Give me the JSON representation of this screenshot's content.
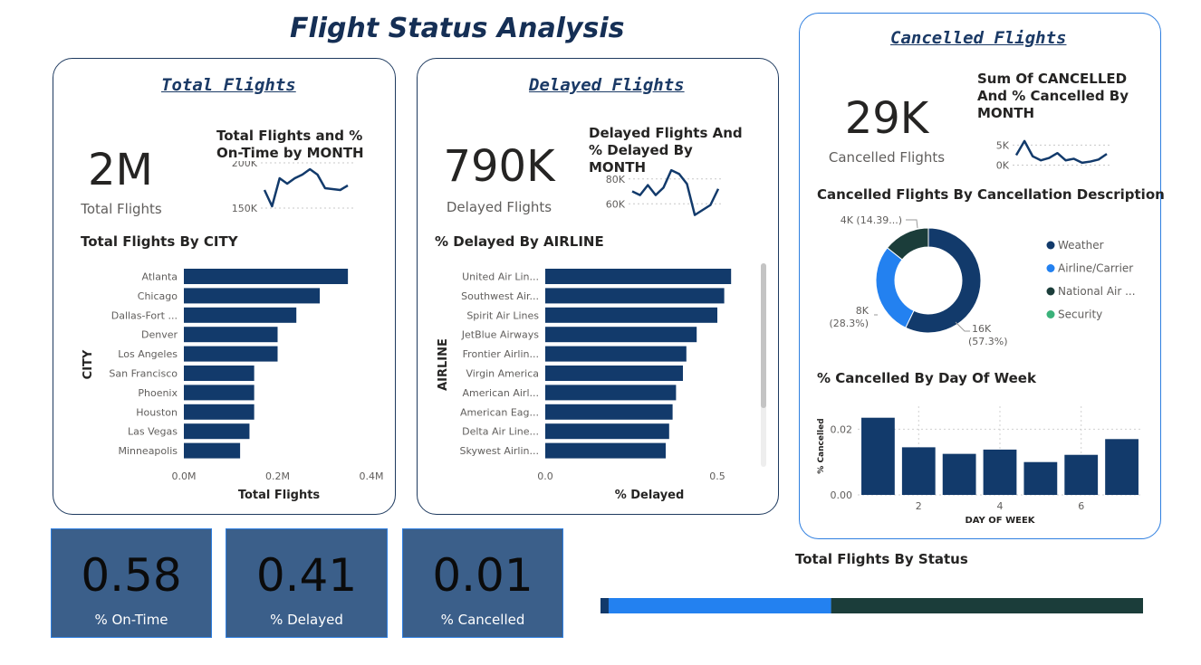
{
  "page_title": "Flight Status Analysis",
  "colors": {
    "navy": "#123a6b",
    "bright_blue": "#2381f0",
    "dark_green": "#1b3d3a",
    "green": "#3bb27a"
  },
  "total_panel": {
    "header": "Total Flights",
    "kpi_value": "2M",
    "kpi_label": "Total Flights",
    "spark_title": "Total Flights and % On-Time by MONTH",
    "bar_title": "Total Flights By CITY"
  },
  "delayed_panel": {
    "header": "Delayed Flights",
    "kpi_value": "790K",
    "kpi_label": "Delayed Flights",
    "spark_title": "Delayed Flights And % Delayed By MONTH",
    "bar_title": "% Delayed By AIRLINE"
  },
  "cancelled_panel": {
    "header": "Cancelled Flights",
    "kpi_value": "29K",
    "kpi_label": "Cancelled Flights",
    "spark_title": "Sum Of CANCELLED And % Cancelled By MONTH",
    "donut_title": "Cancelled Flights By Cancellation Description",
    "col_title": "% Cancelled By Day Of Week"
  },
  "kpis": [
    {
      "value": "0.58",
      "label": "% On-Time"
    },
    {
      "value": "0.41",
      "label": "% Delayed"
    },
    {
      "value": "0.01",
      "label": "% Cancelled"
    }
  ],
  "status_title": "Total Flights By Status",
  "chart_data": [
    {
      "id": "total_spark",
      "type": "line",
      "x": [
        1,
        2,
        3,
        4,
        5,
        6,
        7,
        8,
        9,
        10,
        11,
        12
      ],
      "values": [
        170,
        152,
        183,
        177,
        183,
        187,
        193,
        187,
        172,
        171,
        170,
        175
      ],
      "ylim": [
        140,
        200
      ],
      "ytick_labels": [
        "200K",
        "150K"
      ],
      "yticks": [
        200,
        150
      ]
    },
    {
      "id": "city_bar",
      "type": "bar",
      "orientation": "horizontal",
      "categories": [
        "Atlanta",
        "Chicago",
        "Dallas-Fort ...",
        "Denver",
        "Los Angeles",
        "San Francisco",
        "Phoenix",
        "Houston",
        "Las Vegas",
        "Minneapolis"
      ],
      "values": [
        0.35,
        0.29,
        0.24,
        0.2,
        0.2,
        0.15,
        0.15,
        0.15,
        0.14,
        0.12
      ],
      "xlim": [
        0,
        0.4
      ],
      "xticks": [
        0,
        0.2,
        0.4
      ],
      "xtick_labels": [
        "0.0M",
        "0.2M",
        "0.4M"
      ],
      "xlabel": "Total Flights",
      "ylabel": "CITY"
    },
    {
      "id": "delayed_spark",
      "type": "line",
      "x": [
        1,
        2,
        3,
        4,
        5,
        6,
        7,
        8,
        9,
        10,
        11,
        12
      ],
      "values": [
        70,
        67,
        75,
        67,
        73,
        87,
        84,
        76,
        51,
        55,
        59,
        72
      ],
      "ylim": [
        50,
        90
      ],
      "ytick_labels": [
        "80K",
        "60K"
      ],
      "yticks": [
        80,
        60
      ]
    },
    {
      "id": "airline_bar",
      "type": "bar",
      "orientation": "horizontal",
      "categories": [
        "United Air Lin...",
        "Southwest Air...",
        "Spirit Air Lines",
        "JetBlue Airways",
        "Frontier Airlin...",
        "Virgin America",
        "American Airl...",
        "American Eag...",
        "Delta Air Line...",
        "Skywest Airlin..."
      ],
      "values": [
        0.54,
        0.52,
        0.5,
        0.44,
        0.41,
        0.4,
        0.38,
        0.37,
        0.36,
        0.35
      ],
      "xlim": [
        0,
        0.55
      ],
      "xticks": [
        0,
        0.5
      ],
      "xtick_labels": [
        "0.0",
        "0.5"
      ],
      "xlabel": "% Delayed",
      "ylabel": "AIRLINE"
    },
    {
      "id": "cancel_spark",
      "type": "line",
      "x": [
        1,
        2,
        3,
        4,
        5,
        6,
        7,
        8,
        9,
        10,
        11,
        12
      ],
      "values": [
        2.5,
        6.0,
        2.2,
        1.2,
        1.8,
        3.0,
        1.2,
        1.6,
        0.6,
        0.9,
        1.4,
        2.8
      ],
      "ylim": [
        -1,
        8
      ],
      "ytick_labels": [
        "5K",
        "0K"
      ],
      "yticks": [
        5,
        0
      ]
    },
    {
      "id": "cancel_donut",
      "type": "pie",
      "labels": [
        "Weather",
        "Airline/Carrier",
        "National Air ...",
        "Security"
      ],
      "values": [
        16,
        8,
        4,
        0
      ],
      "data_labels": [
        [
          "16K",
          "(57.3%)"
        ],
        [
          "8K",
          "(28.3%)"
        ],
        [
          "4K (14.39...)"
        ],
        []
      ],
      "legend": "right"
    },
    {
      "id": "dow_bar",
      "type": "bar",
      "orientation": "vertical",
      "categories": [
        1,
        2,
        3,
        4,
        5,
        6,
        7
      ],
      "values": [
        0.0235,
        0.0145,
        0.0125,
        0.0138,
        0.01,
        0.0122,
        0.017
      ],
      "ylim": [
        0,
        0.027
      ],
      "yticks": [
        0,
        0.02
      ],
      "ytick_labels": [
        "0.00",
        "0.02"
      ],
      "xtick_labels": [
        "2",
        "4",
        "6"
      ],
      "xticks": [
        2,
        4,
        6
      ],
      "xlabel": "DAY OF WEEK",
      "ylabel": "% Cancelled"
    },
    {
      "id": "status_bar",
      "type": "bar",
      "orientation": "horizontal-stacked",
      "values": [
        0.015,
        0.41,
        0.575
      ]
    }
  ]
}
